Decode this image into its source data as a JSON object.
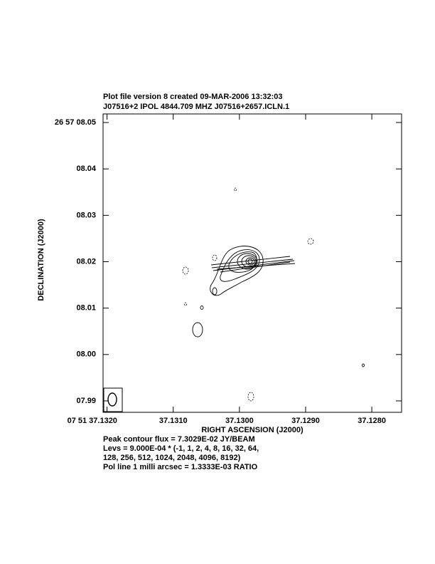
{
  "chart_data": {
    "type": "contour",
    "title": "Plot file version 8  created 09-MAR-2006 13:32:03",
    "subtitle": "J07516+2  IPOL  4844.709 MHZ  J07516+2657.ICLN.1",
    "x_label": "RIGHT ASCENSION (J2000)",
    "y_label": "DECLINATION (J2000)",
    "xlim": [
      37.13206,
      37.12755
    ],
    "ylim": [
      7.98754,
      8.05185
    ],
    "xticks": [
      {
        "value": 37.132,
        "label": "07 51 37.1320"
      },
      {
        "value": 37.131,
        "label": "37.1310"
      },
      {
        "value": 37.13,
        "label": "37.1300"
      },
      {
        "value": 37.129,
        "label": "37.1290"
      },
      {
        "value": 37.128,
        "label": "37.1280"
      }
    ],
    "yticks": [
      {
        "value": 8.05,
        "label": "26 57 08.05"
      },
      {
        "value": 8.04,
        "label": "08.04"
      },
      {
        "value": 8.03,
        "label": "08.03"
      },
      {
        "value": 8.02,
        "label": "08.02"
      },
      {
        "value": 8.01,
        "label": "08.01"
      },
      {
        "value": 8.0,
        "label": "08.00"
      },
      {
        "value": 7.99,
        "label": "07.99"
      }
    ],
    "notes": [
      "Peak contour flux =  7.3029E-02 JY/BEAM",
      "Levs = 9.000E-04 * (-1, 1, 2, 4, 8, 16, 32, 64,",
      "128, 256, 512, 1024, 2048, 4096, 8192)",
      "Pol line 1 milli arcsec =  1.3333E-03 RATIO"
    ]
  }
}
